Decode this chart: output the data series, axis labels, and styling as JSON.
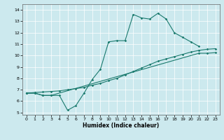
{
  "xlabel": "Humidex (Indice chaleur)",
  "xlim": [
    -0.5,
    23.5
  ],
  "ylim": [
    4.8,
    14.5
  ],
  "xticks": [
    0,
    1,
    2,
    3,
    4,
    5,
    6,
    7,
    8,
    9,
    10,
    11,
    12,
    13,
    14,
    15,
    16,
    17,
    18,
    19,
    20,
    21,
    22,
    23
  ],
  "yticks": [
    5,
    6,
    7,
    8,
    9,
    10,
    11,
    12,
    13,
    14
  ],
  "bg_color": "#cce9ee",
  "line_color": "#1a7a6e",
  "line1_x": [
    0,
    1,
    2,
    3,
    4,
    5,
    6,
    7,
    8,
    9,
    10,
    11,
    12,
    13,
    14,
    15,
    16,
    17,
    18,
    19,
    20,
    21
  ],
  "line1_y": [
    6.7,
    6.7,
    6.5,
    6.5,
    6.5,
    5.2,
    5.6,
    6.7,
    7.9,
    8.8,
    11.2,
    11.3,
    11.3,
    13.6,
    13.3,
    13.2,
    13.7,
    13.2,
    12.0,
    11.6,
    11.2,
    10.8
  ],
  "line2_x": [
    0,
    1,
    2,
    3,
    4,
    5,
    6,
    7,
    8,
    9,
    10,
    11,
    12,
    13,
    14,
    15,
    16,
    17,
    18,
    19,
    20,
    21,
    22,
    23
  ],
  "line2_y": [
    6.7,
    6.75,
    6.8,
    6.85,
    6.9,
    7.0,
    7.1,
    7.2,
    7.4,
    7.55,
    7.8,
    8.0,
    8.3,
    8.6,
    8.9,
    9.2,
    9.5,
    9.7,
    9.9,
    10.1,
    10.3,
    10.45,
    10.55,
    10.6
  ],
  "line3_x": [
    0,
    1,
    2,
    3,
    21,
    22,
    23
  ],
  "line3_y": [
    6.7,
    6.7,
    6.5,
    6.5,
    10.2,
    10.2,
    10.25
  ]
}
